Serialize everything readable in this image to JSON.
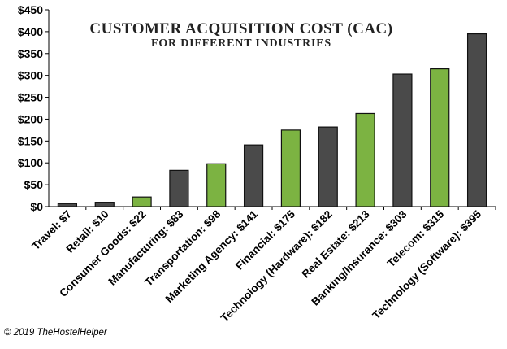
{
  "chart_data": {
    "type": "bar",
    "title": "Customer Acquisition Cost (CAC)",
    "subtitle": "for Different Industries",
    "categories": [
      "Travel: $7",
      "Retail: $10",
      "Consumer Goods: $22",
      "Manufacturing: $83",
      "Transportation: $98",
      "Marketing Agency: $141",
      "Financial: $175",
      "Technology (Hardware): $182",
      "Real Estate: $213",
      "Banking/Insurance: $303",
      "Telecom: $315",
      "Technology (Software): $395"
    ],
    "values": [
      7,
      10,
      22,
      83,
      98,
      141,
      175,
      182,
      213,
      303,
      315,
      395
    ],
    "bar_colors": [
      "#4a4a4a",
      "#4a4a4a",
      "#7cb342",
      "#4a4a4a",
      "#7cb342",
      "#4a4a4a",
      "#7cb342",
      "#4a4a4a",
      "#7cb342",
      "#4a4a4a",
      "#7cb342",
      "#4a4a4a"
    ],
    "ylim": [
      0,
      450
    ],
    "yticks": [
      0,
      50,
      100,
      150,
      200,
      250,
      300,
      350,
      400,
      450
    ],
    "ytick_labels": [
      "$0",
      "$50",
      "$100",
      "$150",
      "$200",
      "$250",
      "$300",
      "$350",
      "$400",
      "$450"
    ],
    "xlabel": "",
    "ylabel": "",
    "grid": false,
    "legend": false
  },
  "footer": {
    "copyright": "© 2019 TheHostelHelper"
  }
}
